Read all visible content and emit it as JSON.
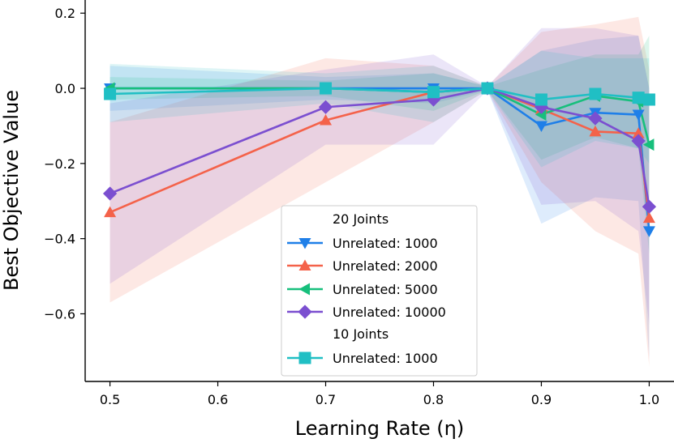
{
  "chart_data": {
    "type": "line",
    "title": "",
    "xlabel": "Learning Rate (η)",
    "ylabel": "Best Objective Value",
    "xlim": [
      0.477,
      1.023
    ],
    "ylim": [
      -0.78,
      0.235
    ],
    "x_ticks": [
      0.5,
      0.6,
      0.7,
      0.8,
      0.9,
      1.0
    ],
    "x_tick_labels": [
      "0.5",
      "0.6",
      "0.7",
      "0.8",
      "0.9",
      "1.0"
    ],
    "y_ticks": [
      0.2,
      0.0,
      -0.2,
      -0.4,
      -0.6
    ],
    "y_tick_labels": [
      "0.2",
      "0.0",
      "−0.2",
      "−0.4",
      "−0.6"
    ],
    "legend_position": "lower-center",
    "legend_groups": [
      {
        "title": "20 Joints",
        "series_indices": [
          0,
          1,
          2,
          3
        ]
      },
      {
        "title": "10 Joints",
        "series_indices": [
          4
        ]
      }
    ],
    "series": [
      {
        "name": "Unrelated: 1000",
        "group": "20 Joints",
        "color": "#1f7fe8",
        "marker": "triangle-down",
        "x": [
          0.5,
          0.7,
          0.8,
          0.85,
          0.9,
          0.95,
          0.99,
          1.0
        ],
        "y": [
          0.0,
          0.0,
          0.0,
          0.0,
          -0.1,
          -0.065,
          -0.07,
          -0.38
        ],
        "band_low": [
          -0.06,
          -0.03,
          -0.04,
          -0.005,
          -0.36,
          -0.29,
          -0.3,
          -0.72
        ],
        "band_high": [
          0.06,
          0.03,
          0.04,
          0.005,
          0.1,
          0.13,
          0.14,
          0.0
        ]
      },
      {
        "name": "Unrelated: 2000",
        "group": "20 Joints",
        "color": "#f4624a",
        "marker": "triangle-up",
        "x": [
          0.5,
          0.7,
          0.8,
          0.85,
          0.9,
          0.95,
          0.99,
          1.0
        ],
        "y": [
          -0.33,
          -0.085,
          -0.01,
          0.0,
          -0.055,
          -0.115,
          -0.12,
          -0.345
        ],
        "band_low": [
          -0.57,
          -0.25,
          -0.09,
          -0.005,
          -0.25,
          -0.38,
          -0.44,
          -0.74
        ],
        "band_high": [
          -0.09,
          0.08,
          0.06,
          0.005,
          0.15,
          0.17,
          0.19,
          0.05
        ]
      },
      {
        "name": "Unrelated: 5000",
        "group": "20 Joints",
        "color": "#17bf7c",
        "marker": "triangle-left",
        "x": [
          0.5,
          0.7,
          0.8,
          0.85,
          0.9,
          0.95,
          0.99,
          1.0
        ],
        "y": [
          0.0,
          0.0,
          -0.01,
          0.0,
          -0.07,
          -0.02,
          -0.035,
          -0.15
        ],
        "band_low": [
          -0.03,
          -0.02,
          -0.06,
          -0.005,
          -0.19,
          -0.13,
          -0.16,
          -0.44
        ],
        "band_high": [
          0.03,
          0.02,
          0.04,
          0.005,
          0.05,
          0.09,
          0.09,
          0.14
        ]
      },
      {
        "name": "Unrelated: 10000",
        "group": "20 Joints",
        "color": "#7b4fd0",
        "marker": "diamond",
        "x": [
          0.5,
          0.7,
          0.8,
          0.85,
          0.9,
          0.95,
          0.99,
          1.0
        ],
        "y": [
          -0.28,
          -0.05,
          -0.03,
          0.0,
          -0.05,
          -0.08,
          -0.14,
          -0.315
        ],
        "band_low": [
          -0.52,
          -0.15,
          -0.15,
          -0.005,
          -0.31,
          -0.3,
          -0.38,
          -0.63
        ],
        "band_high": [
          -0.04,
          0.05,
          0.09,
          0.005,
          0.16,
          0.16,
          0.14,
          0.0
        ]
      },
      {
        "name": "Unrelated: 1000",
        "group": "10 Joints",
        "color": "#20bfc4",
        "marker": "square",
        "x": [
          0.5,
          0.7,
          0.8,
          0.85,
          0.9,
          0.95,
          0.99,
          1.0
        ],
        "y": [
          -0.015,
          0.0,
          -0.01,
          0.0,
          -0.03,
          -0.015,
          -0.025,
          -0.03
        ],
        "band_low": [
          -0.09,
          -0.04,
          -0.09,
          -0.005,
          -0.21,
          -0.14,
          -0.16,
          -0.2
        ],
        "band_high": [
          0.065,
          0.04,
          0.06,
          0.005,
          0.1,
          0.08,
          0.08,
          0.08
        ]
      }
    ]
  }
}
